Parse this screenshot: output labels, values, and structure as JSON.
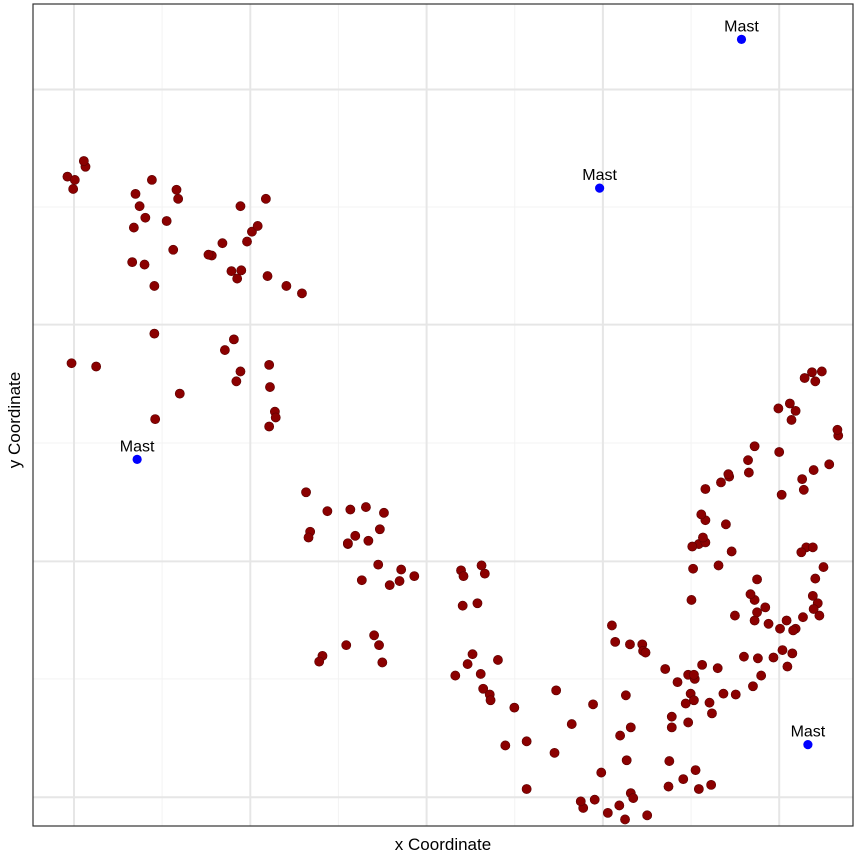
{
  "chart_data": {
    "type": "scatter",
    "title": "",
    "xlabel": "x Coordinate",
    "ylabel": "y Coordinate",
    "xlim": [
      0,
      100
    ],
    "ylim": [
      0,
      100
    ],
    "grid": true,
    "colors": {
      "points": "#8b0000",
      "points_stroke": "#5a0000",
      "mast": "#0000ff",
      "grid_major": "#e6e6e6",
      "grid_minor": "#f3f3f3",
      "panel_border": "#333333"
    },
    "series": [
      {
        "x": [
          4.2,
          5.1,
          6.4,
          6.2,
          4.9,
          12.1,
          13.6,
          12.3,
          13.0,
          14.5,
          12.5,
          13.7,
          14.8,
          17.1,
          16.3,
          17.5,
          17.7,
          14.8,
          24.2,
          24.9,
          21.8,
          26.7,
          27.4,
          28.4,
          25.3,
          28.6,
          21.4,
          23.1,
          25.4,
          26.1,
          30.9,
          32.8,
          24.5,
          23.4,
          25.3,
          24.8,
          28.8,
          28.9,
          29.5,
          29.6,
          28.8,
          4.7,
          7.7,
          17.9,
          14.9,
          33.3,
          35.9,
          33.8,
          33.6,
          40.6,
          39.3,
          38.4,
          40.9,
          42.3,
          42.8,
          38.7,
          38.4,
          44.7,
          40.1,
          42.1,
          44.9,
          46.5,
          43.5,
          38.2,
          42.6,
          35.3,
          34.9,
          41.6,
          42.2,
          52.4,
          54.2,
          52.2,
          54.7,
          55.1,
          52.5,
          53.6,
          56.7,
          53.0,
          51.5,
          54.6,
          54.9,
          55.7,
          55.8,
          60.2,
          57.6,
          58.7,
          63.8,
          68.3,
          65.7,
          63.6,
          69.3,
          60.2,
          67.1,
          72.9,
          71.5,
          66.8,
          68.5,
          70.1,
          74.9,
          72.2,
          77.6,
          79.3,
          77.5,
          73.2,
          72.4,
          72.9,
          71.6,
          79.6,
          79.9,
          77.9,
          80.8,
          82.7,
          81.2,
          72.3,
          79.9,
          81.6,
          74.3,
          70.6,
          71.0,
          72.8,
          74.4,
          74.7,
          77.1,
          78.6,
          80.7,
          82.8,
          80.6,
          80.2,
          80.6,
          77.9,
          88.4,
          92.0,
          90.3,
          91.9,
          95.9,
          88.0,
          85.6,
          88.3,
          89.7,
          93.0,
          95.7,
          96.4,
          88.3,
          94.3,
          95.1,
          93.7,
          95.4,
          88.0,
          87.5,
          91.1,
          93.9,
          95.2,
          95.1,
          88.8,
          87.8,
          92.6,
          91.4,
          92.7,
          82.5,
          84.2,
          85.7,
          83.5,
          86.7,
          89.3,
          80.3,
          80.5,
          83.6,
          85.2,
          81.2,
          80.4,
          82.0,
          81.7,
          84.5,
          82.0,
          81.5,
          91.3,
          94.0,
          93.8,
          95.2,
          97.1,
          98.2,
          98.1,
          84.9,
          82.0,
          83.9,
          87.3,
          87.2,
          84.8,
          88.0,
          91.0,
          92.5,
          90.9,
          92.3,
          93.0,
          95.4,
          95.0,
          94.1,
          96.2
        ],
        "y": [
          79.0,
          78.6,
          80.2,
          80.9,
          77.5,
          68.6,
          68.3,
          72.8,
          75.4,
          78.6,
          76.9,
          74.0,
          65.7,
          70.1,
          73.6,
          77.4,
          76.3,
          59.9,
          67.5,
          66.6,
          69.4,
          72.3,
          73.0,
          76.3,
          75.4,
          66.9,
          69.5,
          70.9,
          67.6,
          71.1,
          65.7,
          64.8,
          59.2,
          57.9,
          55.3,
          54.1,
          56.1,
          53.4,
          50.4,
          49.7,
          48.6,
          56.3,
          55.9,
          52.6,
          49.5,
          40.6,
          38.3,
          35.8,
          35.1,
          38.8,
          35.3,
          34.3,
          34.7,
          36.1,
          38.1,
          38.5,
          34.4,
          29.8,
          29.9,
          31.8,
          31.2,
          30.4,
          29.3,
          22.0,
          19.9,
          20.7,
          20.0,
          23.2,
          22.0,
          26.8,
          27.1,
          31.1,
          31.7,
          30.7,
          30.4,
          20.9,
          20.2,
          19.7,
          18.3,
          18.5,
          16.7,
          16.0,
          15.3,
          10.3,
          9.8,
          14.4,
          16.5,
          14.8,
          12.4,
          8.9,
          6.5,
          4.5,
          2.2,
          4.0,
          2.5,
          3.0,
          3.2,
          1.6,
          1.3,
          0.8,
          7.9,
          5.7,
          4.8,
          3.4,
          8.0,
          12.0,
          11.0,
          14.9,
          12.6,
          12.0,
          6.8,
          5.0,
          4.5,
          15.9,
          18.4,
          19.6,
          22.1,
          24.4,
          22.4,
          22.1,
          21.3,
          21.1,
          19.1,
          17.5,
          17.9,
          13.7,
          18.4,
          16.1,
          15.3,
          13.3,
          20.4,
          19.4,
          20.5,
          25.0,
          25.6,
          25.0,
          25.6,
          26.0,
          24.6,
          24.0,
          27.1,
          31.5,
          30.0,
          33.9,
          33.9,
          33.3,
          30.1,
          27.5,
          28.2,
          24.0,
          25.4,
          26.4,
          28.0,
          18.3,
          17.0,
          21.0,
          21.4,
          23.8,
          15.0,
          16.1,
          16.0,
          19.2,
          20.6,
          26.6,
          27.5,
          31.3,
          31.7,
          33.4,
          34.3,
          34.0,
          34.5,
          35.1,
          36.7,
          37.2,
          37.9,
          40.3,
          40.9,
          42.2,
          43.3,
          44.0,
          47.5,
          48.2,
          42.5,
          41.0,
          41.8,
          43.0,
          44.5,
          42.8,
          46.2,
          45.5,
          49.4,
          50.8,
          51.4,
          50.5,
          54.1,
          55.2,
          54.5,
          55.3
        ],
        "_note": ""
      }
    ],
    "masts": [
      {
        "label": "Mast",
        "x": 12.7,
        "y": 44.6
      },
      {
        "label": "Mast",
        "x": 69.1,
        "y": 77.6
      },
      {
        "label": "Mast",
        "x": 86.4,
        "y": 95.7
      },
      {
        "label": "Mast",
        "x": 94.5,
        "y": 9.9
      }
    ]
  }
}
